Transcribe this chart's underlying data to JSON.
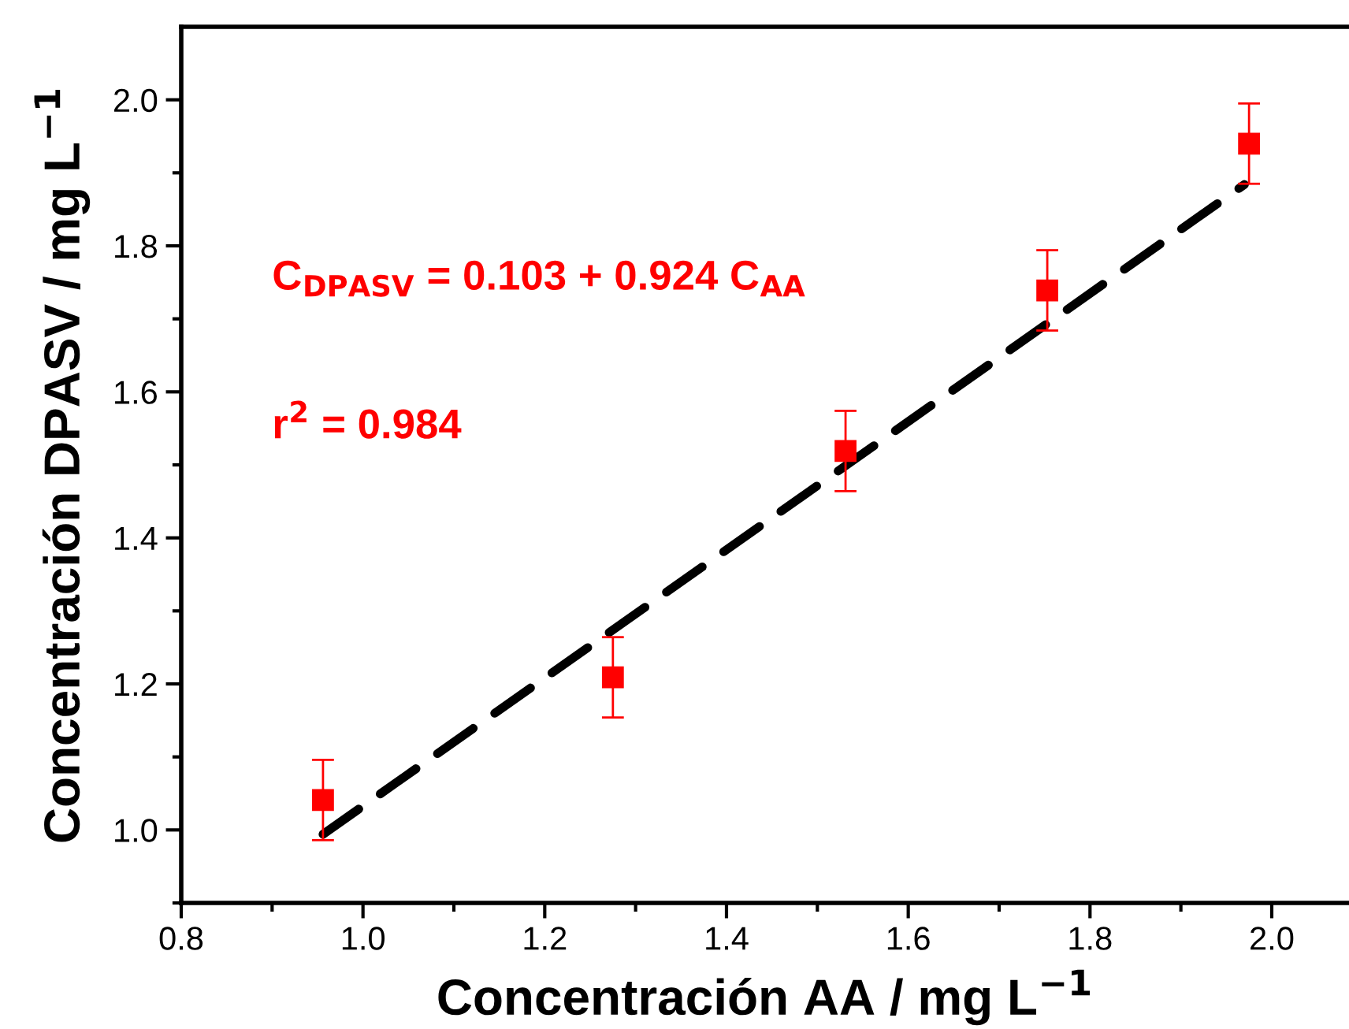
{
  "chart_data": {
    "type": "scatter",
    "xlabel": "Concentración AA / mg L$^{−1}$",
    "ylabel": "Concentración DPASV / mg L$^{−1}$",
    "annotations": [
      "C$_{DPASV}$ = 0.103 + 0.924 C$_{AA}$",
      "r$^{2}$ = 0.984"
    ],
    "x": [
      0.956,
      1.275,
      1.531,
      1.753,
      1.975
    ],
    "series": [
      {
        "color": "#ff0000",
        "marker": "square",
        "values": [
          1.041,
          1.209,
          1.519,
          1.739,
          1.94
        ],
        "errors": [
          0.055,
          0.055,
          0.055,
          0.055,
          0.055
        ]
      },
      {
        "type": "line",
        "color": "#000000",
        "line_style": "dashed",
        "marker": "none",
        "x": [
          0.956,
          1.97
        ],
        "values": [
          0.994,
          1.884
        ]
      }
    ],
    "xlim": [
      0.8,
      2.085
    ],
    "ylim": [
      0.9,
      2.1
    ],
    "xticks": [
      0.8,
      {
        "value": 1.0,
        "label": "1.0"
      },
      1.2,
      1.4,
      1.6,
      1.8,
      {
        "value": 2.0,
        "label": "2.0"
      }
    ],
    "yticks": [
      {
        "value": 1.0,
        "label": "1.0"
      },
      1.2,
      1.4,
      1.6,
      1.8,
      {
        "value": 2.0,
        "label": "2.0"
      }
    ],
    "grid": false,
    "legend": false
  }
}
